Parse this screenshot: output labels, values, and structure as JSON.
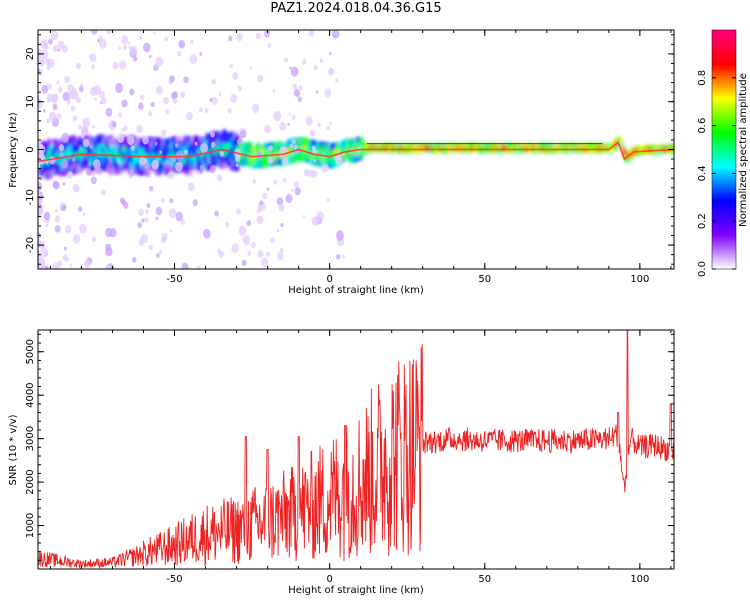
{
  "title": "PAZ1.2024.018.04.36.G15",
  "colorbar": {
    "label": "Normalized spectral amplitude",
    "ticks": [
      "0.0",
      "0.2",
      "0.4",
      "0.6",
      "0.8"
    ],
    "colors": [
      "#ffffff",
      "#8000ff",
      "#0000ff",
      "#00ffff",
      "#00ff00",
      "#ffff00",
      "#ff0000",
      "#ff0080"
    ]
  },
  "chart_data": [
    {
      "type": "heatmap",
      "title": "",
      "xlabel": "Height of straight line (km)",
      "ylabel": "Frequency (Hz)",
      "xlim": [
        -94,
        111
      ],
      "ylim": [
        -25,
        25
      ],
      "xticks": [
        "-50",
        "0",
        "50",
        "100"
      ],
      "yticks": [
        "20",
        "10",
        "0",
        "-10",
        "-20"
      ],
      "zlim": [
        0,
        1
      ],
      "ridge": [
        [
          -94,
          -2.5
        ],
        [
          -80,
          -1
        ],
        [
          -60,
          -1.5
        ],
        [
          -45,
          -1.5
        ],
        [
          -35,
          0
        ],
        [
          -25,
          -1.5
        ],
        [
          -15,
          -1
        ],
        [
          -10,
          0
        ],
        [
          -5,
          -1
        ],
        [
          0,
          -1.5
        ],
        [
          5,
          -0.5
        ],
        [
          10,
          0
        ],
        [
          90,
          0
        ],
        [
          93,
          1.5
        ],
        [
          95,
          -2
        ],
        [
          98,
          -0.5
        ],
        [
          111,
          0
        ]
      ],
      "color": "#ff3333"
    },
    {
      "type": "line",
      "title": "",
      "xlabel": "Height of straight line (km)",
      "ylabel": "SNR (10 * v/v)",
      "xlim": [
        -94,
        111
      ],
      "ylim": [
        0,
        5500
      ],
      "xticks": [
        "-50",
        "0",
        "50",
        "100"
      ],
      "yticks": [
        "1000",
        "2000",
        "3000",
        "4000",
        "5000"
      ],
      "color": "#ee2222",
      "series": [
        {
          "envelope": [
            [
              -94,
              250
            ],
            [
              -80,
              120
            ],
            [
              -70,
              150
            ],
            [
              -60,
              350
            ],
            [
              -50,
              550
            ],
            [
              -40,
              800
            ],
            [
              -30,
              900
            ],
            [
              -20,
              1100
            ],
            [
              -10,
              1300
            ],
            [
              0,
              1650
            ],
            [
              10,
              2000
            ],
            [
              20,
              2600
            ],
            [
              30,
              2900
            ],
            [
              40,
              3000
            ],
            [
              50,
              2950
            ],
            [
              60,
              2950
            ],
            [
              70,
              2950
            ],
            [
              80,
              2950
            ],
            [
              90,
              3000
            ],
            [
              93,
              3100
            ],
            [
              95,
              1800
            ],
            [
              97,
              3000
            ],
            [
              100,
              2800
            ],
            [
              105,
              2850
            ],
            [
              111,
              2700
            ]
          ],
          "spikes": [
            [
              -27,
              3050
            ],
            [
              -20,
              2750
            ],
            [
              -10,
              3050
            ],
            [
              5,
              3300
            ],
            [
              93,
              3600
            ],
            [
              96,
              5600
            ],
            [
              110,
              3800
            ]
          ]
        }
      ]
    }
  ]
}
